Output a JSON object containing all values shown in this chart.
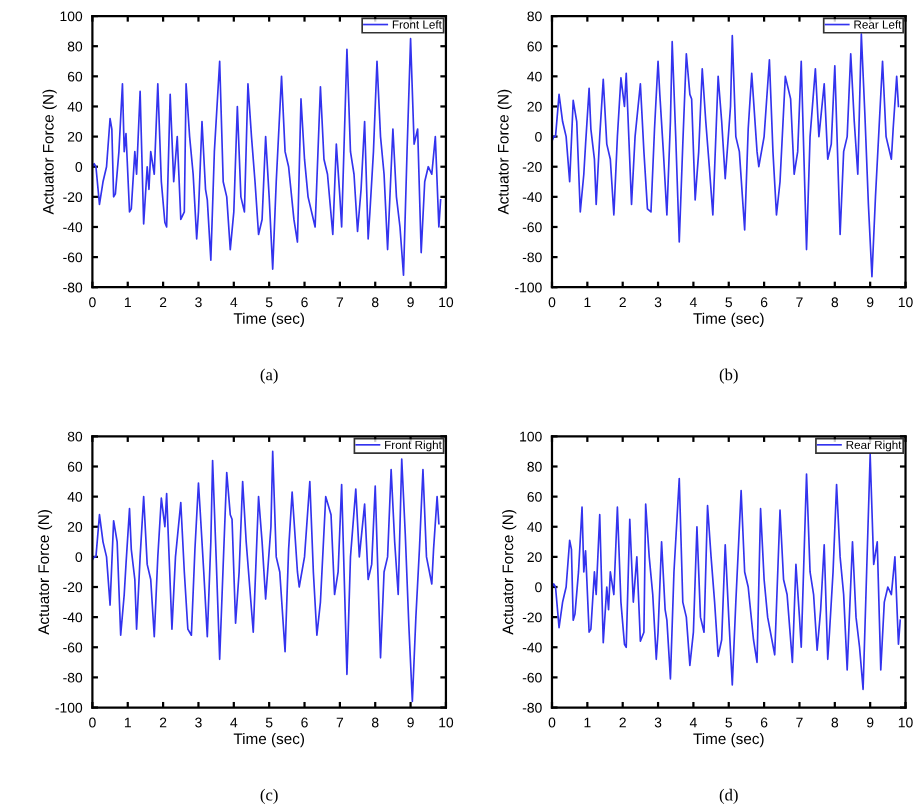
{
  "chart_data": [
    {
      "type": "line",
      "xlabel": "Time (sec)",
      "ylabel": "Actuator Force (N)",
      "annotations": [
        "(a)"
      ],
      "legend": "top right",
      "grid": false,
      "xlim": [
        0,
        10
      ],
      "xticks": [
        0,
        1,
        2,
        3,
        4,
        5,
        6,
        7,
        8,
        9,
        10
      ],
      "ylim": [
        -80,
        100
      ],
      "yticks": [
        -80,
        -60,
        -40,
        -20,
        0,
        20,
        40,
        60,
        80,
        100
      ],
      "series": [
        {
          "name": "Front Left",
          "color": "#3333ee",
          "x": [
            0,
            0.05,
            0.1,
            0.2,
            0.3,
            0.35,
            0.4,
            0.5,
            0.55,
            0.6,
            0.65,
            0.75,
            0.85,
            0.9,
            0.95,
            1.05,
            1.1,
            1.2,
            1.25,
            1.35,
            1.45,
            1.55,
            1.6,
            1.65,
            1.75,
            1.85,
            1.95,
            2.05,
            2.1,
            2.2,
            2.3,
            2.4,
            2.5,
            2.6,
            2.65,
            2.75,
            2.85,
            2.95,
            3.0,
            3.1,
            3.2,
            3.25,
            3.35,
            3.45,
            3.6,
            3.7,
            3.8,
            3.9,
            4.0,
            4.1,
            4.2,
            4.3,
            4.4,
            4.5,
            4.6,
            4.7,
            4.8,
            4.9,
            5.0,
            5.1,
            5.2,
            5.35,
            5.45,
            5.55,
            5.7,
            5.8,
            5.9,
            6.0,
            6.1,
            6.3,
            6.45,
            6.55,
            6.65,
            6.8,
            6.9,
            7.0,
            7.05,
            7.2,
            7.3,
            7.4,
            7.5,
            7.6,
            7.7,
            7.8,
            7.85,
            7.95,
            8.05,
            8.15,
            8.25,
            8.35,
            8.5,
            8.6,
            8.7,
            8.8,
            8.9,
            9.0,
            9.1,
            9.2,
            9.3,
            9.4,
            9.5,
            9.6,
            9.7,
            9.8,
            9.85
          ],
          "values": [
            0,
            2,
            0,
            -25,
            -10,
            -5,
            0,
            32,
            25,
            -20,
            -18,
            10,
            55,
            10,
            22,
            -30,
            -28,
            10,
            -5,
            50,
            -38,
            0,
            -15,
            10,
            -5,
            55,
            -10,
            -37,
            -40,
            48,
            -10,
            20,
            -35,
            -30,
            55,
            20,
            -5,
            -48,
            -30,
            30,
            -15,
            -22,
            -62,
            10,
            70,
            -10,
            -20,
            -55,
            -30,
            40,
            -20,
            -30,
            55,
            20,
            -10,
            -45,
            -35,
            20,
            -20,
            -68,
            -10,
            60,
            10,
            0,
            -35,
            -50,
            45,
            5,
            -20,
            -40,
            53,
            5,
            -5,
            -45,
            15,
            -20,
            -40,
            78,
            10,
            -5,
            -43,
            -15,
            30,
            -48,
            -30,
            10,
            70,
            20,
            -5,
            -55,
            25,
            -20,
            -40,
            -72,
            10,
            85,
            15,
            25,
            -57,
            -10,
            0,
            -5,
            20,
            -40,
            -22
          ]
        }
      ]
    },
    {
      "type": "line",
      "xlabel": "Time (sec)",
      "ylabel": "Actuator Force (N)",
      "annotations": [
        "(b)"
      ],
      "legend": "top right",
      "grid": false,
      "xlim": [
        0,
        10
      ],
      "xticks": [
        0,
        1,
        2,
        3,
        4,
        5,
        6,
        7,
        8,
        9,
        10
      ],
      "ylim": [
        -100,
        80
      ],
      "yticks": [
        -100,
        -80,
        -60,
        -40,
        -20,
        0,
        20,
        40,
        60,
        80
      ],
      "series": [
        {
          "name": "Rear Left",
          "color": "#3333ee",
          "x": [
            0,
            0.05,
            0.1,
            0.2,
            0.3,
            0.35,
            0.4,
            0.5,
            0.6,
            0.7,
            0.8,
            0.9,
            0.95,
            1.05,
            1.1,
            1.2,
            1.25,
            1.35,
            1.45,
            1.55,
            1.65,
            1.75,
            1.85,
            1.95,
            2.05,
            2.1,
            2.25,
            2.35,
            2.5,
            2.6,
            2.7,
            2.8,
            2.9,
            3.0,
            3.05,
            3.15,
            3.25,
            3.35,
            3.4,
            3.5,
            3.6,
            3.7,
            3.8,
            3.9,
            3.95,
            4.05,
            4.15,
            4.25,
            4.35,
            4.45,
            4.55,
            4.7,
            4.8,
            4.9,
            5.05,
            5.1,
            5.2,
            5.3,
            5.45,
            5.55,
            5.65,
            5.8,
            5.85,
            6.0,
            6.15,
            6.25,
            6.35,
            6.45,
            6.6,
            6.75,
            6.85,
            6.95,
            7.05,
            7.2,
            7.3,
            7.45,
            7.55,
            7.7,
            7.8,
            7.9,
            8.0,
            8.15,
            8.25,
            8.35,
            8.45,
            8.55,
            8.65,
            8.75,
            8.85,
            8.95,
            9.05,
            9.15,
            9.25,
            9.35,
            9.45,
            9.6,
            9.65,
            9.75,
            9.8
          ],
          "values": [
            -3,
            0,
            0,
            28,
            10,
            5,
            0,
            -30,
            24,
            10,
            -50,
            -25,
            -5,
            32,
            5,
            -15,
            -45,
            0,
            38,
            -5,
            -15,
            -52,
            0,
            39,
            20,
            42,
            -45,
            0,
            35,
            -10,
            -48,
            -50,
            5,
            50,
            28,
            -10,
            -52,
            10,
            63,
            0,
            -70,
            -5,
            55,
            28,
            25,
            -42,
            -10,
            45,
            10,
            -20,
            -52,
            40,
            10,
            -28,
            20,
            67,
            0,
            -10,
            -62,
            5,
            42,
            -10,
            -20,
            0,
            51,
            -10,
            -52,
            -30,
            40,
            25,
            -25,
            -10,
            50,
            -75,
            0,
            45,
            0,
            35,
            -15,
            -5,
            47,
            -65,
            -10,
            0,
            55,
            10,
            -25,
            68,
            15,
            -45,
            -93,
            -40,
            5,
            50,
            0,
            -15,
            5,
            40,
            20
          ]
        }
      ]
    },
    {
      "type": "line",
      "xlabel": "Time (sec)",
      "ylabel": "Actuator Force (N)",
      "annotations": [
        "(c)"
      ],
      "legend": "top right",
      "grid": false,
      "xlim": [
        0,
        10
      ],
      "xticks": [
        0,
        1,
        2,
        3,
        4,
        5,
        6,
        7,
        8,
        9,
        10
      ],
      "ylim": [
        -100,
        80
      ],
      "yticks": [
        -100,
        -80,
        -60,
        -40,
        -20,
        0,
        20,
        40,
        60,
        80
      ],
      "series": [
        {
          "name": "Front Right",
          "color": "#3333ee",
          "x": [
            0,
            0.05,
            0.1,
            0.2,
            0.3,
            0.35,
            0.4,
            0.5,
            0.6,
            0.7,
            0.8,
            0.9,
            0.95,
            1.05,
            1.1,
            1.2,
            1.25,
            1.35,
            1.45,
            1.55,
            1.65,
            1.75,
            1.85,
            1.95,
            2.05,
            2.1,
            2.25,
            2.35,
            2.5,
            2.6,
            2.7,
            2.8,
            2.9,
            3.0,
            3.05,
            3.15,
            3.25,
            3.35,
            3.4,
            3.5,
            3.6,
            3.7,
            3.8,
            3.9,
            3.95,
            4.05,
            4.15,
            4.25,
            4.35,
            4.45,
            4.55,
            4.7,
            4.8,
            4.9,
            5.05,
            5.1,
            5.2,
            5.3,
            5.45,
            5.55,
            5.65,
            5.8,
            5.85,
            6.0,
            6.15,
            6.25,
            6.35,
            6.45,
            6.6,
            6.75,
            6.85,
            6.95,
            7.05,
            7.2,
            7.3,
            7.45,
            7.55,
            7.7,
            7.8,
            7.9,
            8.0,
            8.15,
            8.25,
            8.35,
            8.45,
            8.55,
            8.65,
            8.75,
            8.85,
            8.95,
            9.05,
            9.15,
            9.25,
            9.35,
            9.45,
            9.6,
            9.65,
            9.75,
            9.8
          ],
          "values": [
            -2,
            0,
            0,
            28,
            10,
            5,
            0,
            -32,
            24,
            10,
            -52,
            -25,
            -5,
            32,
            5,
            -15,
            -48,
            0,
            40,
            -5,
            -15,
            -53,
            0,
            39,
            20,
            42,
            -48,
            0,
            36,
            -10,
            -48,
            -52,
            5,
            49,
            30,
            -10,
            -53,
            10,
            64,
            0,
            -68,
            -5,
            56,
            28,
            25,
            -44,
            -10,
            50,
            10,
            -20,
            -50,
            40,
            10,
            -28,
            20,
            70,
            0,
            -10,
            -63,
            5,
            43,
            -10,
            -20,
            0,
            50,
            -10,
            -52,
            -30,
            40,
            28,
            -25,
            -10,
            48,
            -78,
            0,
            45,
            0,
            35,
            -15,
            -5,
            47,
            -67,
            -10,
            0,
            58,
            10,
            -25,
            65,
            15,
            -45,
            -96,
            -40,
            5,
            58,
            0,
            -18,
            5,
            40,
            22
          ]
        }
      ]
    },
    {
      "type": "line",
      "xlabel": "Time (sec)",
      "ylabel": "Actuator Force (N)",
      "annotations": [
        "(d)"
      ],
      "legend": "top right",
      "grid": false,
      "xlim": [
        0,
        10
      ],
      "xticks": [
        0,
        1,
        2,
        3,
        4,
        5,
        6,
        7,
        8,
        9,
        10
      ],
      "ylim": [
        -80,
        100
      ],
      "yticks": [
        -80,
        -60,
        -40,
        -20,
        0,
        20,
        40,
        60,
        80,
        100
      ],
      "series": [
        {
          "name": "Rear Right",
          "color": "#3333ee",
          "x": [
            0,
            0.05,
            0.1,
            0.2,
            0.3,
            0.35,
            0.4,
            0.5,
            0.55,
            0.6,
            0.65,
            0.75,
            0.85,
            0.9,
            0.95,
            1.05,
            1.1,
            1.2,
            1.25,
            1.35,
            1.45,
            1.55,
            1.6,
            1.65,
            1.75,
            1.85,
            1.95,
            2.05,
            2.1,
            2.2,
            2.3,
            2.4,
            2.5,
            2.6,
            2.65,
            2.75,
            2.85,
            2.95,
            3.0,
            3.1,
            3.2,
            3.25,
            3.35,
            3.45,
            3.6,
            3.7,
            3.8,
            3.9,
            4.0,
            4.1,
            4.2,
            4.3,
            4.4,
            4.5,
            4.6,
            4.7,
            4.8,
            4.9,
            5.0,
            5.1,
            5.2,
            5.35,
            5.45,
            5.55,
            5.7,
            5.8,
            5.9,
            6.0,
            6.1,
            6.3,
            6.45,
            6.55,
            6.65,
            6.8,
            6.9,
            7.0,
            7.05,
            7.2,
            7.3,
            7.4,
            7.5,
            7.6,
            7.7,
            7.8,
            7.85,
            7.95,
            8.05,
            8.15,
            8.25,
            8.35,
            8.5,
            8.6,
            8.7,
            8.8,
            8.9,
            9.0,
            9.1,
            9.2,
            9.3,
            9.4,
            9.5,
            9.6,
            9.7,
            9.8,
            9.85
          ],
          "values": [
            0,
            2,
            0,
            -27,
            -10,
            -5,
            0,
            31,
            25,
            -22,
            -18,
            10,
            53,
            10,
            24,
            -30,
            -28,
            10,
            -5,
            48,
            -37,
            0,
            -15,
            10,
            -5,
            53,
            -10,
            -38,
            -40,
            45,
            -10,
            20,
            -36,
            -30,
            55,
            20,
            -5,
            -48,
            -30,
            30,
            -15,
            -22,
            -61,
            10,
            72,
            -10,
            -20,
            -52,
            -30,
            40,
            -20,
            -30,
            54,
            20,
            -10,
            -46,
            -35,
            28,
            -20,
            -65,
            -10,
            64,
            10,
            0,
            -35,
            -50,
            52,
            5,
            -20,
            -45,
            51,
            5,
            -5,
            -50,
            15,
            -20,
            -40,
            75,
            10,
            -5,
            -42,
            -15,
            28,
            -48,
            -30,
            10,
            68,
            20,
            -5,
            -55,
            30,
            -20,
            -40,
            -68,
            10,
            88,
            15,
            30,
            -55,
            -10,
            0,
            -5,
            20,
            -38,
            -22
          ]
        }
      ]
    }
  ]
}
